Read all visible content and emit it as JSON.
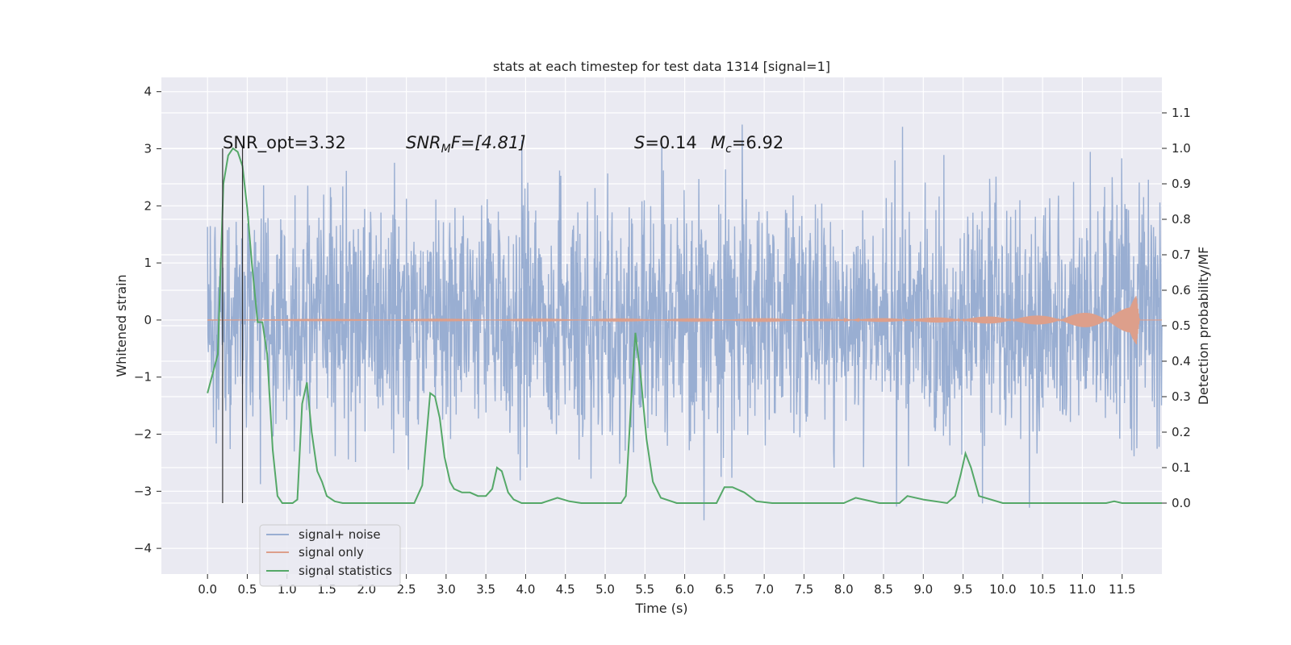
{
  "chart_data": {
    "type": "line",
    "title": "stats at each timestep for test data 1314 [signal=1]",
    "xlabel": "Time (s)",
    "ylabel": "Whitened strain",
    "ylabel_right": "Detection probability/MF",
    "xlim": [
      -0.58,
      12.0
    ],
    "ylim": [
      -4.45,
      4.25
    ],
    "ylim_right": [
      -0.2,
      1.2
    ],
    "x_ticks": [
      "0.0",
      "0.5",
      "1.0",
      "1.5",
      "2.0",
      "2.5",
      "3.0",
      "3.5",
      "4.0",
      "4.5",
      "5.0",
      "5.5",
      "6.0",
      "6.5",
      "7.0",
      "7.5",
      "8.0",
      "8.5",
      "9.0",
      "9.5",
      "10.0",
      "10.5",
      "11.0",
      "11.5"
    ],
    "y_ticks": [
      4,
      3,
      2,
      1,
      0,
      -1,
      -2,
      -3,
      -4
    ],
    "y_ticks_right": [
      "1.1",
      "1.0",
      "0.9",
      "0.8",
      "0.7",
      "0.6",
      "0.5",
      "0.4",
      "0.3",
      "0.2",
      "0.1",
      "0.0"
    ],
    "grid": true,
    "legend_position": "lower-left",
    "annotations": {
      "snr_opt": "SNR_opt=3.32",
      "snr_mf_main": "SNR",
      "snr_mf_sub": "M",
      "snr_mf_rest": "F=[4.81]",
      "s_main": "S",
      "s_rest": "=0.14",
      "mc_main": "M",
      "mc_sub": "c",
      "mc_rest": "=6.92"
    },
    "vertical_markers": [
      0.19,
      0.44
    ],
    "series": [
      {
        "name": "signal+ noise",
        "color": "#99aed2",
        "description_range": [
          -2.6,
          2.6
        ],
        "x_range": [
          0.0,
          12.0
        ]
      },
      {
        "name": "signal only",
        "color": "#dd9f8b",
        "envelope": {
          "x": [
            0.0,
            7.0,
            9.0,
            10.5,
            11.3,
            11.6,
            11.68,
            11.72
          ],
          "amp": [
            0.005,
            0.01,
            0.04,
            0.08,
            0.15,
            0.22,
            0.5,
            0.0
          ]
        }
      },
      {
        "name": "signal statistics",
        "color": "#55a868",
        "axis": "right",
        "x": [
          0.0,
          0.13,
          0.2,
          0.26,
          0.32,
          0.38,
          0.44,
          0.5,
          0.56,
          0.63,
          0.69,
          0.75,
          0.82,
          0.88,
          0.94,
          1.0,
          1.07,
          1.13,
          1.19,
          1.25,
          1.31,
          1.38,
          1.44,
          1.5,
          1.6,
          1.7,
          1.8,
          2.0,
          2.2,
          2.4,
          2.6,
          2.7,
          2.75,
          2.8,
          2.86,
          2.92,
          2.98,
          3.05,
          3.1,
          3.2,
          3.3,
          3.4,
          3.5,
          3.58,
          3.64,
          3.7,
          3.78,
          3.85,
          3.95,
          4.2,
          4.4,
          4.55,
          4.7,
          5.0,
          5.2,
          5.26,
          5.33,
          5.38,
          5.45,
          5.52,
          5.6,
          5.7,
          5.9,
          6.2,
          6.4,
          6.5,
          6.6,
          6.75,
          6.9,
          7.1,
          7.5,
          8.0,
          8.15,
          8.25,
          8.45,
          8.7,
          8.8,
          9.0,
          9.3,
          9.4,
          9.47,
          9.53,
          9.6,
          9.7,
          10.0,
          11.0,
          11.3,
          11.4,
          11.5,
          12.0
        ],
        "values": [
          0.31,
          0.42,
          0.9,
          0.98,
          1.0,
          0.99,
          0.95,
          0.83,
          0.67,
          0.51,
          0.51,
          0.42,
          0.15,
          0.02,
          0.0,
          0.0,
          0.0,
          0.01,
          0.28,
          0.34,
          0.2,
          0.09,
          0.06,
          0.02,
          0.005,
          0.0,
          0.0,
          0.0,
          0.0,
          0.0,
          0.0,
          0.05,
          0.18,
          0.31,
          0.3,
          0.24,
          0.13,
          0.06,
          0.04,
          0.03,
          0.03,
          0.02,
          0.02,
          0.04,
          0.1,
          0.09,
          0.03,
          0.01,
          0.0,
          0.0,
          0.015,
          0.005,
          0.0,
          0.0,
          0.0,
          0.02,
          0.3,
          0.48,
          0.35,
          0.18,
          0.06,
          0.015,
          0.0,
          0.0,
          0.0,
          0.045,
          0.045,
          0.03,
          0.005,
          0.0,
          0.0,
          0.0,
          0.015,
          0.01,
          0.0,
          0.0,
          0.02,
          0.01,
          0.0,
          0.02,
          0.08,
          0.14,
          0.1,
          0.02,
          0.0,
          0.0,
          0.0,
          0.005,
          0.0,
          0.0
        ]
      }
    ]
  }
}
